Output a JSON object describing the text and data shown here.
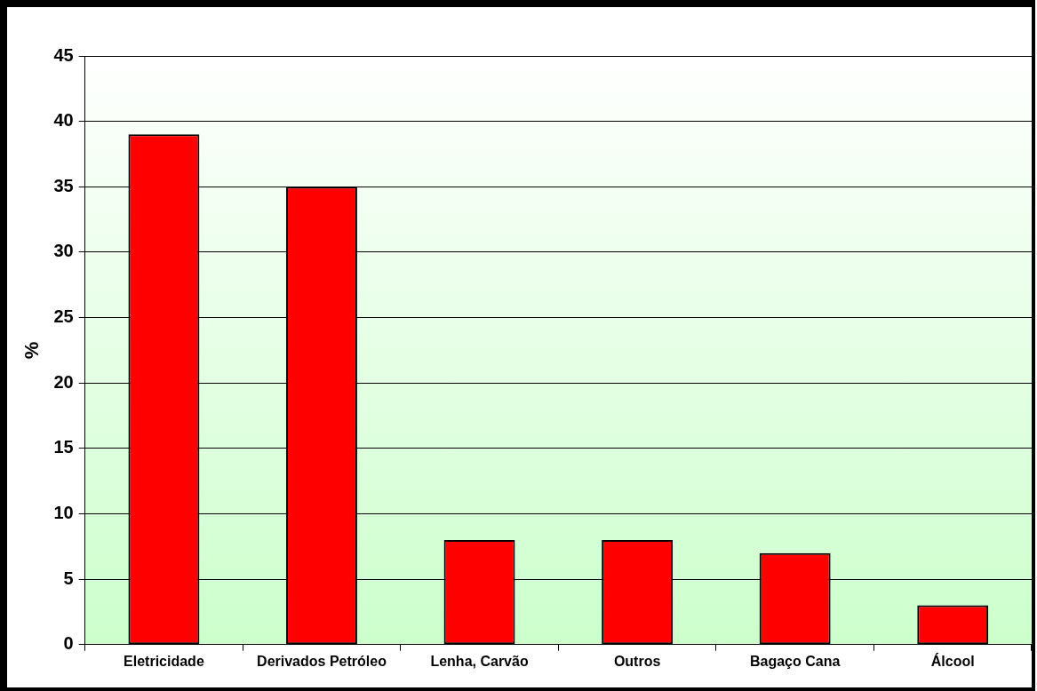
{
  "chart_data": {
    "type": "bar",
    "ylabel": "%",
    "categories": [
      "Eletricidade",
      "Derivados Petróleo",
      "Lenha, Carvão",
      "Outros",
      "Bagaço Cana",
      "Álcool"
    ],
    "values": [
      39,
      35,
      8,
      8,
      7,
      3
    ],
    "color": "#ff0000",
    "ylim": [
      0,
      45
    ],
    "yticks": [
      0,
      5,
      10,
      15,
      20,
      25,
      30,
      35,
      40,
      45
    ],
    "grid": "y"
  }
}
